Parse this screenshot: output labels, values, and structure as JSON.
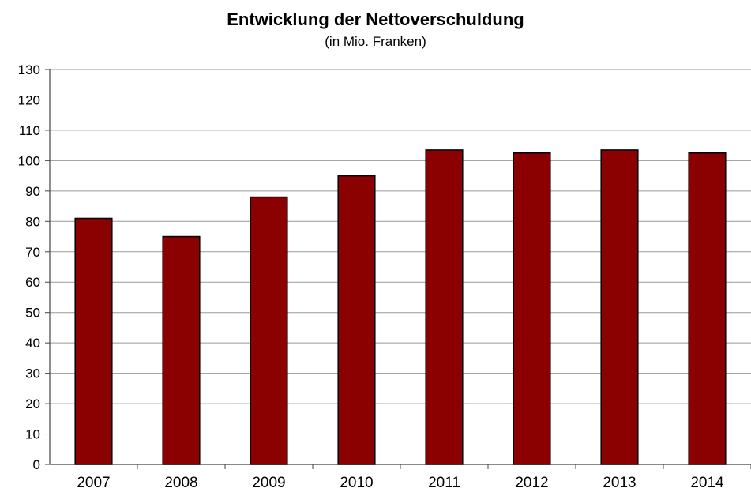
{
  "chart_data": {
    "type": "bar",
    "title": "Entwicklung der Nettoverschuldung",
    "subtitle": "(in Mio. Franken)",
    "xlabel": "",
    "ylabel": "",
    "categories": [
      "2007",
      "2008",
      "2009",
      "2010",
      "2011",
      "2012",
      "2013",
      "2014"
    ],
    "values": [
      81,
      75,
      88,
      95,
      103.5,
      102.5,
      103.5,
      102.5
    ],
    "ylim": [
      0,
      130
    ],
    "yticks": [
      "0",
      "10",
      "20",
      "30",
      "40",
      "50",
      "60",
      "70",
      "80",
      "90",
      "100",
      "110",
      "120",
      "130"
    ],
    "grid": true,
    "legend": "none",
    "bar_color": "#8b0000"
  }
}
